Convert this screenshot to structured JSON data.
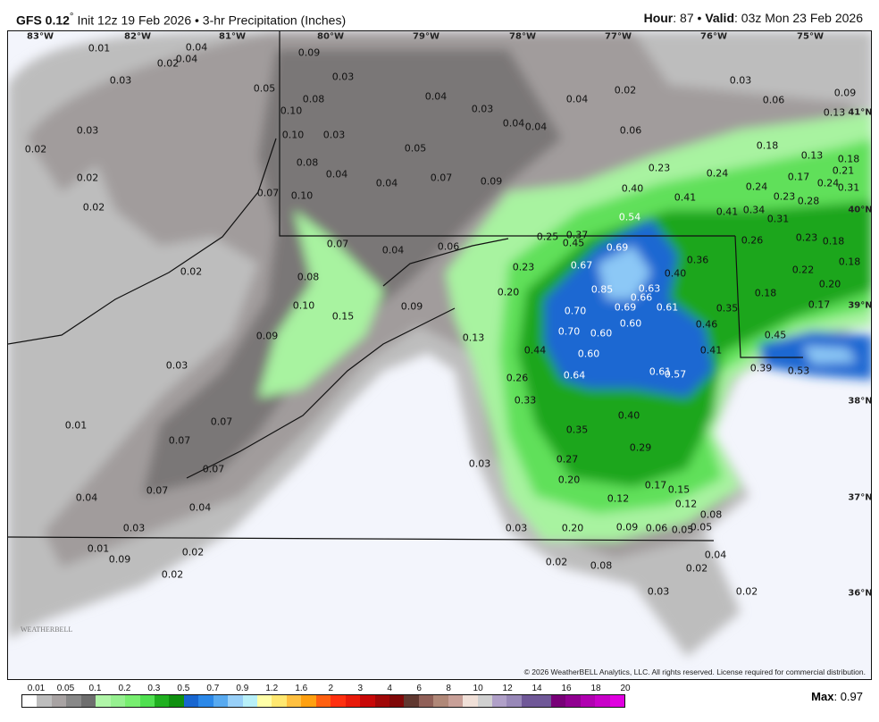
{
  "header": {
    "model": "GFS 0.12",
    "degree": "°",
    "init": " Init 12z 19 Feb 2026 • 3-hr Precipitation (Inches)",
    "hour_label": "Hour",
    "hour": ": 87 • ",
    "valid_label": "Valid",
    "valid": ": 03z Mon 23 Feb 2026"
  },
  "axes": {
    "lon": [
      "83°W",
      "82°W",
      "81°W",
      "80°W",
      "79°W",
      "78°W",
      "77°W",
      "76°W",
      "75°W"
    ],
    "lat": [
      "41°N",
      "40°N",
      "39°N",
      "38°N",
      "37°N",
      "36°N"
    ]
  },
  "values": [
    "0.01",
    "0.04",
    "0.02",
    "0.04",
    "0.03",
    "0.05",
    "0.09",
    "0.03",
    "0.04",
    "0.03",
    "0.04",
    "0.04",
    "0.04",
    "0.02",
    "0.03",
    "0.06",
    "0.09",
    "0.13",
    "0.08",
    "0.10",
    "0.10",
    "0.03",
    "0.02",
    "0.03",
    "0.06",
    "0.05",
    "0.08",
    "0.04",
    "0.02",
    "0.04",
    "0.07",
    "0.09",
    "0.23",
    "0.24",
    "0.18",
    "0.13",
    "0.18",
    "0.21",
    "0.17",
    "0.24",
    "0.31",
    "0.24",
    "0.23",
    "0.28",
    "0.40",
    "0.41",
    "0.41",
    "0.34",
    "0.31",
    "0.02",
    "0.07",
    "0.10",
    "0.54",
    "0.37",
    "0.25",
    "0.45",
    "0.69",
    "0.26",
    "0.23",
    "0.18",
    "0.07",
    "0.04",
    "0.06",
    "0.36",
    "0.40",
    "0.67",
    "0.23",
    "0.22",
    "0.18",
    "0.02",
    "0.08",
    "0.85",
    "0.63",
    "0.66",
    "0.20",
    "0.20",
    "0.18",
    "0.10",
    "0.15",
    "0.09",
    "0.70",
    "0.69",
    "0.61",
    "0.35",
    "0.17",
    "0.60",
    "0.46",
    "0.09",
    "0.13",
    "0.70",
    "0.60",
    "0.45",
    "0.41",
    "0.44",
    "0.60",
    "0.03",
    "0.39",
    "0.53",
    "0.64",
    "0.61",
    "0.57",
    "0.26",
    "0.33",
    "0.07",
    "0.01",
    "0.40",
    "0.35",
    "0.07",
    "0.29",
    "0.03",
    "0.27",
    "0.07",
    "0.20",
    "0.17",
    "0.15",
    "0.07",
    "0.04",
    "0.12",
    "0.12",
    "0.04",
    "0.08",
    "0.03",
    "0.03",
    "0.20",
    "0.09",
    "0.06",
    "0.05",
    "0.05",
    "0.01",
    "0.09",
    "0.02",
    "0.02",
    "0.08",
    "0.04",
    "0.02",
    "0.02",
    "0.03",
    "0.02"
  ],
  "copyright": "© 2026 WeatherBELL Analytics, LLC. All rights reserved. License required for commercial distribution.",
  "logo": "WeatherBELL",
  "legend": {
    "ticks": [
      "0.01",
      "0.05",
      "0.1",
      "0.2",
      "0.3",
      "0.5",
      "0.7",
      "0.9",
      "1.2",
      "1.6",
      "2",
      "3",
      "4",
      "6",
      "8",
      "10",
      "12",
      "14",
      "16",
      "18",
      "20"
    ],
    "colors": [
      "#ffffff",
      "#bdbdbd",
      "#a8a3a3",
      "#888888",
      "#6e6e6e",
      "#b0f5a8",
      "#96f090",
      "#78ee70",
      "#50e050",
      "#20b020",
      "#109010",
      "#1866d0",
      "#2b88e8",
      "#58aaf0",
      "#98d0f8",
      "#b8f0f8",
      "#ffffa8",
      "#ffe870",
      "#ffc040",
      "#ffa010",
      "#ff6010",
      "#ff3010",
      "#e81a0a",
      "#c80808",
      "#a00808",
      "#800808",
      "#603830",
      "#906058",
      "#b08878",
      "#c8a098",
      "#f0e0d8",
      "#d0d0d0",
      "#b0a0c8",
      "#9888b8",
      "#705898",
      "#705898",
      "#780078",
      "#900090",
      "#b000b0",
      "#c800c8",
      "#e000e0"
    ]
  },
  "max_label": "Max",
  "max_value": ": 0.97"
}
